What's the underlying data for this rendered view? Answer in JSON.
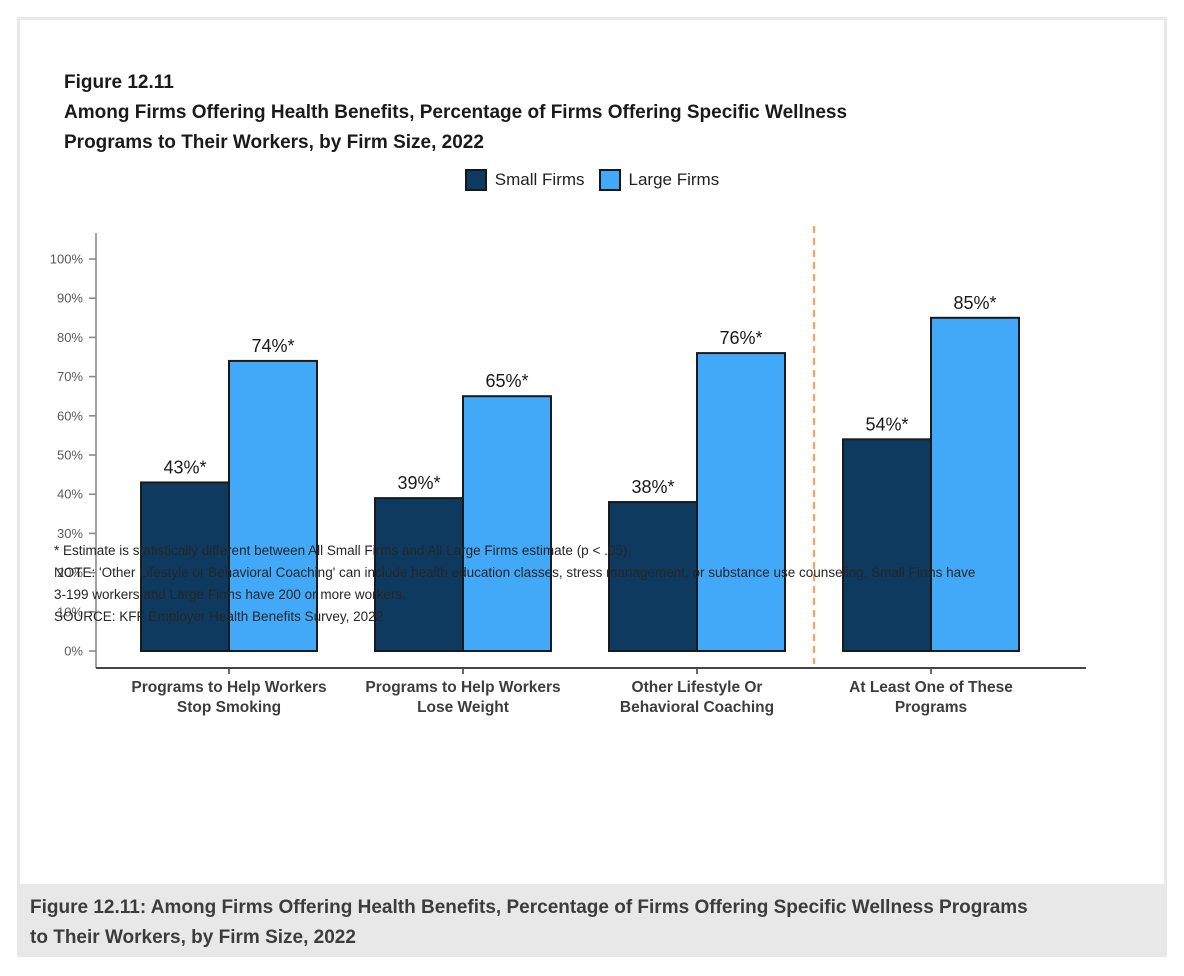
{
  "figure": {
    "label": "Figure 12.11",
    "title": "Among Firms Offering Health Benefits, Percentage of Firms Offering Specific Wellness\nPrograms to Their Workers, by Firm Size, 2022"
  },
  "legend": {
    "items": [
      {
        "label": "Small Firms",
        "color": "#0d3a5e"
      },
      {
        "label": "Large Firms",
        "color": "#41a9f7"
      }
    ]
  },
  "chart_data": {
    "type": "bar",
    "title": "Among Firms Offering Health Benefits, Percentage of Firms Offering Specific Wellness Programs to Their Workers, by Firm Size, 2022",
    "categories": [
      [
        "Programs to Help Workers",
        "Stop Smoking"
      ],
      [
        "Programs to Help Workers",
        "Lose Weight"
      ],
      [
        "Other Lifestyle Or",
        "Behavioral Coaching"
      ],
      [
        "At Least One of These",
        "Programs"
      ]
    ],
    "series": [
      {
        "name": "Small Firms",
        "color": "#0d3a5e",
        "values": [
          43,
          39,
          38,
          54
        ],
        "labels": [
          "43%*",
          "39%*",
          "38%*",
          "54%*"
        ]
      },
      {
        "name": "Large Firms",
        "color": "#41a9f7",
        "values": [
          74,
          65,
          76,
          85
        ],
        "labels": [
          "74%*",
          "65%*",
          "76%*",
          "85%*"
        ]
      }
    ],
    "y_axis": {
      "min": 0,
      "max": 100,
      "tick_labels": [
        "0%",
        "10%",
        "20%",
        "30%",
        "40%",
        "50%",
        "60%",
        "70%",
        "80%",
        "90%",
        "100%"
      ]
    },
    "xlabel": "",
    "ylabel": "",
    "grid": false,
    "legend_position": "top-center",
    "bar_border_color": "#1a1a1a",
    "separator": {
      "type": "dashed-vertical-line",
      "color": "#f9a35a",
      "between": [
        "Other Lifestyle Or Behavioral Coaching",
        "At Least One of These Programs"
      ]
    }
  },
  "footnotes": [
    "* Estimate is statistically different between All Small Firms and All Large Firms estimate (p < .05).",
    "NOTE: 'Other Lifestyle or Behavioral Coaching' can include health education classes, stress management, or substance use counseling. Small Firms have\n3-199 workers and Large Firms have 200 or more workers.",
    "SOURCE: KFF Employer Health Benefits Survey, 2022"
  ],
  "caption": "Figure 12.11: Among Firms Offering Health Benefits, Percentage of Firms Offering Specific Wellness Programs\nto Their Workers, by Firm Size, 2022"
}
